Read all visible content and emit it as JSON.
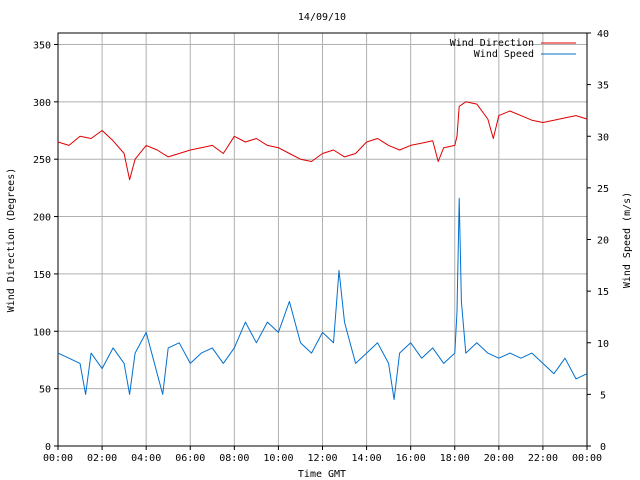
{
  "chart_data": {
    "type": "line",
    "title": "14/09/10",
    "xlabel": "Time GMT",
    "ylabel_left": "Wind Direction (Degrees)",
    "ylabel_right": "Wind Speed (m/s)",
    "x_range": [
      0,
      24
    ],
    "x_ticks": [
      "00:00",
      "02:00",
      "04:00",
      "06:00",
      "08:00",
      "10:00",
      "12:00",
      "14:00",
      "16:00",
      "18:00",
      "20:00",
      "22:00",
      "00:00"
    ],
    "ylim_left": [
      0,
      360
    ],
    "y_ticks_left": [
      "0",
      "50",
      "100",
      "150",
      "200",
      "250",
      "300",
      "350"
    ],
    "ylim_right": [
      0,
      40
    ],
    "y_ticks_right": [
      "0",
      "5",
      "10",
      "15",
      "20",
      "25",
      "30",
      "35",
      "40"
    ],
    "grid": true,
    "legend_position": "top-right",
    "series": [
      {
        "name": "Wind Direction",
        "axis": "left",
        "color": "#e00000",
        "x": [
          0,
          0.5,
          1,
          1.5,
          2,
          2.5,
          3,
          3.25,
          3.5,
          4,
          4.5,
          5,
          5.5,
          6,
          6.5,
          7,
          7.5,
          8,
          8.5,
          9,
          9.5,
          10,
          10.5,
          11,
          11.5,
          12,
          12.5,
          13,
          13.5,
          14,
          14.5,
          15,
          15.5,
          16,
          16.5,
          17,
          17.25,
          17.5,
          18,
          18.1,
          18.2,
          18.5,
          19,
          19.5,
          19.75,
          20,
          20.5,
          21,
          21.5,
          22,
          22.5,
          23,
          23.5,
          24
        ],
        "values": [
          265,
          262,
          270,
          268,
          275,
          266,
          255,
          232,
          250,
          262,
          258,
          252,
          255,
          258,
          260,
          262,
          255,
          270,
          265,
          268,
          262,
          260,
          255,
          250,
          248,
          255,
          258,
          252,
          255,
          265,
          268,
          262,
          258,
          262,
          264,
          266,
          248,
          260,
          262,
          270,
          296,
          300,
          298,
          285,
          268,
          288,
          292,
          288,
          284,
          282,
          284,
          286,
          288,
          285
        ]
      },
      {
        "name": "Wind Speed",
        "axis": "right",
        "color": "#0070d0",
        "x": [
          0,
          0.5,
          1,
          1.25,
          1.5,
          2,
          2.5,
          3,
          3.25,
          3.5,
          4,
          4.5,
          4.75,
          5,
          5.5,
          6,
          6.5,
          7,
          7.5,
          8,
          8.5,
          9,
          9.5,
          10,
          10.5,
          11,
          11.5,
          12,
          12.5,
          12.75,
          13,
          13.5,
          14,
          14.5,
          15,
          15.25,
          15.5,
          16,
          16.5,
          17,
          17.5,
          18,
          18.1,
          18.2,
          18.3,
          18.5,
          19,
          19.5,
          20,
          20.5,
          21,
          21.5,
          22,
          22.5,
          23,
          23.5,
          24
        ],
        "values": [
          9,
          8.5,
          8,
          5,
          9,
          7.5,
          9.5,
          8,
          5,
          9,
          11,
          7,
          5,
          9.5,
          10,
          8,
          9,
          9.5,
          8,
          9.5,
          12,
          10,
          12,
          11,
          14,
          10,
          9,
          11,
          10,
          17,
          12,
          8,
          9,
          10,
          8,
          4.5,
          9,
          10,
          8.5,
          9.5,
          8,
          9,
          13,
          24,
          14,
          9,
          10,
          9,
          8.5,
          9,
          8.5,
          9,
          8,
          7,
          8.5,
          6.5,
          7
        ]
      }
    ]
  }
}
